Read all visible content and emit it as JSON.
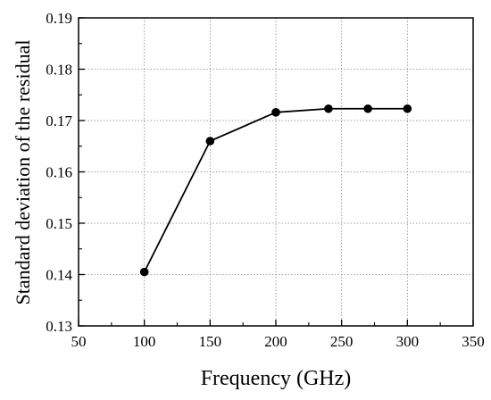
{
  "chart_data": {
    "type": "line",
    "xlabel": "Frequency (GHz)",
    "ylabel": "Standard deviation of the residual",
    "xlim": [
      50,
      350
    ],
    "ylim": [
      0.13,
      0.19
    ],
    "grid": true,
    "x_ticks": [
      "50",
      "100",
      "150",
      "200",
      "250",
      "300",
      "350"
    ],
    "y_ticks": [
      "0.13",
      "0.14",
      "0.15",
      "0.16",
      "0.17",
      "0.18",
      "0.19"
    ],
    "x_tick_values": [
      50,
      100,
      150,
      200,
      250,
      300,
      350
    ],
    "y_tick_values": [
      0.13,
      0.14,
      0.15,
      0.16,
      0.17,
      0.18,
      0.19
    ],
    "series": [
      {
        "x": [
          100,
          150,
          200,
          240,
          270,
          300
        ],
        "y": [
          0.1405,
          0.166,
          0.1716,
          0.1723,
          0.1723,
          0.1723
        ],
        "color": "#000000",
        "marker": "circle"
      }
    ]
  }
}
